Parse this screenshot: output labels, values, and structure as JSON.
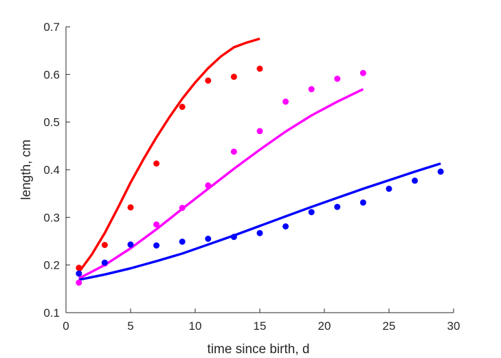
{
  "chart_data": {
    "type": "scatter",
    "title": "",
    "xlabel": "time since birth, d",
    "ylabel": "length, cm",
    "xlim": [
      0,
      30
    ],
    "ylim": [
      0.1,
      0.7
    ],
    "xticks": [
      "0",
      "5",
      "10",
      "15",
      "20",
      "25",
      "30"
    ],
    "yticks": [
      "0.1",
      "0.2",
      "0.3",
      "0.4",
      "0.5",
      "0.6",
      "0.7"
    ],
    "grid": false,
    "series": [
      {
        "color": "#ff0000",
        "points": {
          "x": [
            1,
            3,
            5,
            7,
            9,
            11,
            13,
            15
          ],
          "y": [
            0.194,
            0.242,
            0.321,
            0.413,
            0.532,
            0.587,
            0.595,
            0.612
          ]
        },
        "fit": {
          "x": [
            1,
            2,
            3,
            4,
            5,
            6,
            7,
            8,
            9,
            10,
            11,
            12,
            13,
            14,
            15
          ],
          "y": [
            0.185,
            0.222,
            0.267,
            0.319,
            0.373,
            0.422,
            0.468,
            0.51,
            0.549,
            0.583,
            0.613,
            0.638,
            0.657,
            0.667,
            0.675
          ]
        }
      },
      {
        "color": "#ff00ff",
        "points": {
          "x": [
            1,
            3,
            5,
            7,
            9,
            11,
            13,
            15,
            17,
            19,
            21,
            23
          ],
          "y": [
            0.163,
            0.203,
            0.243,
            0.285,
            0.32,
            0.367,
            0.438,
            0.481,
            0.543,
            0.569,
            0.591,
            0.603
          ]
        },
        "fit": {
          "x": [
            1,
            3,
            5,
            7,
            9,
            11,
            13,
            15,
            17,
            19,
            21,
            23
          ],
          "y": [
            0.172,
            0.2,
            0.235,
            0.275,
            0.318,
            0.36,
            0.402,
            0.442,
            0.48,
            0.514,
            0.543,
            0.569
          ]
        }
      },
      {
        "color": "#0000ff",
        "points": {
          "x": [
            1,
            3,
            5,
            7,
            9,
            11,
            13,
            15,
            17,
            19,
            21,
            23,
            25,
            27,
            29
          ],
          "y": [
            0.182,
            0.205,
            0.243,
            0.241,
            0.249,
            0.255,
            0.259,
            0.267,
            0.281,
            0.311,
            0.322,
            0.331,
            0.36,
            0.377,
            0.396
          ]
        },
        "fit": {
          "x": [
            1,
            3,
            5,
            7,
            9,
            11,
            13,
            15,
            17,
            19,
            21,
            23,
            25,
            27,
            29
          ],
          "y": [
            0.169,
            0.18,
            0.193,
            0.208,
            0.224,
            0.243,
            0.262,
            0.282,
            0.302,
            0.322,
            0.341,
            0.36,
            0.378,
            0.396,
            0.413
          ]
        }
      }
    ]
  }
}
